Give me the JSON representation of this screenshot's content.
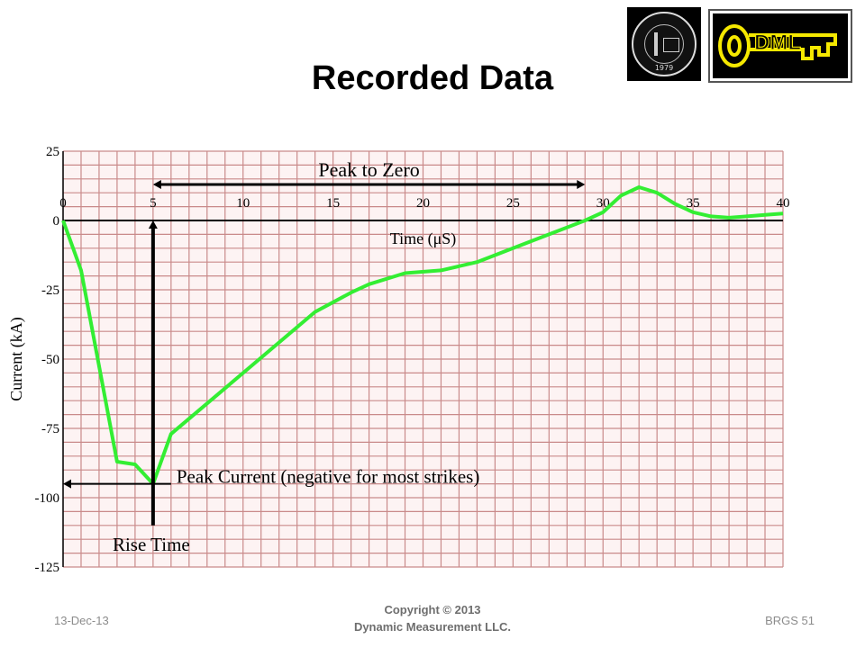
{
  "slide": {
    "title": "Recorded Data",
    "footer_date": "13-Dec-13",
    "copyright_line1": "Copyright © 2013",
    "copyright_line2": "Dynamic Measurement LLC.",
    "page_label": "BRGS 51"
  },
  "logos": {
    "seal_year": "1979",
    "dml_text": "DML"
  },
  "colors": {
    "grid": "#c98a8a",
    "background": "#fdf3f3",
    "series": "#33ee33",
    "dml_yellow": "#f5e800"
  },
  "chart_data": {
    "type": "line",
    "title": "",
    "xlabel": "Time (μS)",
    "ylabel": "Current (kA)",
    "xlim": [
      0,
      40
    ],
    "ylim": [
      -125,
      25
    ],
    "x_ticks": [
      0,
      5,
      10,
      15,
      20,
      25,
      30,
      35,
      40
    ],
    "y_ticks": [
      25,
      0,
      -25,
      -50,
      -75,
      -100,
      -125
    ],
    "grid": true,
    "series": [
      {
        "x": [
          0,
          1,
          3,
          4,
          5,
          6,
          8,
          10,
          12,
          14,
          16,
          17,
          19,
          21,
          23,
          25,
          27,
          29,
          30,
          30.5,
          31,
          32,
          33,
          34,
          35,
          36,
          37,
          38,
          39,
          40
        ],
        "y": [
          0,
          -18,
          -87,
          -88,
          -95,
          -77,
          -66,
          -55,
          -44,
          -33,
          -26,
          -23,
          -19,
          -18,
          -15,
          -10,
          -5,
          0,
          3,
          6,
          9,
          12,
          10,
          6,
          3,
          1.5,
          1,
          1.5,
          2,
          2.5
        ]
      }
    ],
    "annotations": [
      {
        "text": "Peak to Zero",
        "type": "double-arrow",
        "x_from": 5,
        "x_to": 29,
        "y": 13
      },
      {
        "text": "Peak Current (negative for most strikes)",
        "type": "left-arrow",
        "x_from": 6,
        "x_to": 0,
        "y": -95
      },
      {
        "text": "Rise Time",
        "type": "up-arrow",
        "x": 5,
        "y_from": -110,
        "y_to": 0
      }
    ]
  }
}
